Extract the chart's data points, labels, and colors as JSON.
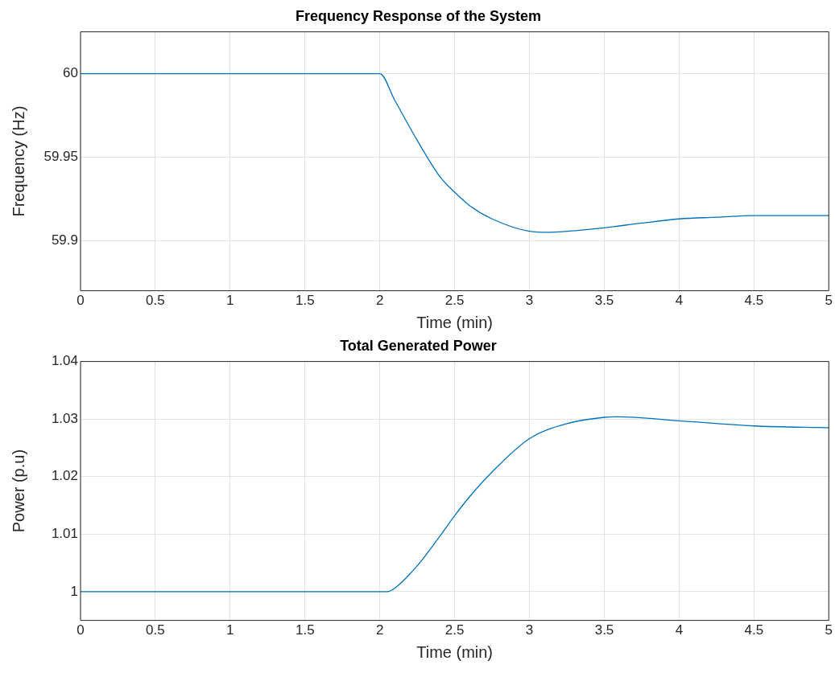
{
  "chart_data": [
    {
      "type": "line",
      "title": "Frequency Response of the System",
      "xlabel": "Time (min)",
      "ylabel": "Frequency (Hz)",
      "x": [
        0,
        0.5,
        1,
        1.5,
        2,
        2.1,
        2.25,
        2.4,
        2.5,
        2.6,
        2.75,
        3,
        3.12,
        3.25,
        3.5,
        3.75,
        4,
        4.25,
        4.5,
        4.75,
        5
      ],
      "series": [
        {
          "color": "#0072bd",
          "values": [
            60,
            60,
            60,
            60,
            60,
            59.984,
            59.96,
            59.9385,
            59.929,
            59.921,
            59.913,
            59.9056,
            59.905,
            59.9056,
            59.9077,
            59.9105,
            59.913,
            59.914,
            59.915,
            59.915,
            59.915
          ]
        }
      ],
      "xlim": [
        0,
        5
      ],
      "xticks": [
        0,
        0.5,
        1,
        1.5,
        2,
        2.5,
        3,
        3.5,
        4,
        4.5,
        5
      ],
      "ylim": [
        59.87,
        60.025
      ],
      "yticks": [
        59.9,
        59.95,
        60
      ],
      "grid": true
    },
    {
      "type": "line",
      "title": "Total Generated Power",
      "xlabel": "Time (min)",
      "ylabel": "Power (p.u)",
      "x": [
        0,
        0.5,
        1,
        1.5,
        2,
        2.05,
        2.1,
        2.25,
        2.4,
        2.5,
        2.6,
        2.75,
        3,
        3.25,
        3.5,
        3.6,
        4,
        4.5,
        5
      ],
      "series": [
        {
          "color": "#0072bd",
          "values": [
            1,
            1,
            1,
            1,
            1,
            1,
            1.0006,
            1.0045,
            1.0096,
            1.0132,
            1.0165,
            1.0208,
            1.0266,
            1.0292,
            1.0303,
            1.0304,
            1.0297,
            1.0288,
            1.0285
          ]
        }
      ],
      "xlim": [
        0,
        5
      ],
      "xticks": [
        0,
        0.5,
        1,
        1.5,
        2,
        2.5,
        3,
        3.5,
        4,
        4.5,
        5
      ],
      "ylim": [
        0.995,
        1.04
      ],
      "yticks": [
        1,
        1.01,
        1.02,
        1.03,
        1.04
      ],
      "grid": true
    }
  ]
}
